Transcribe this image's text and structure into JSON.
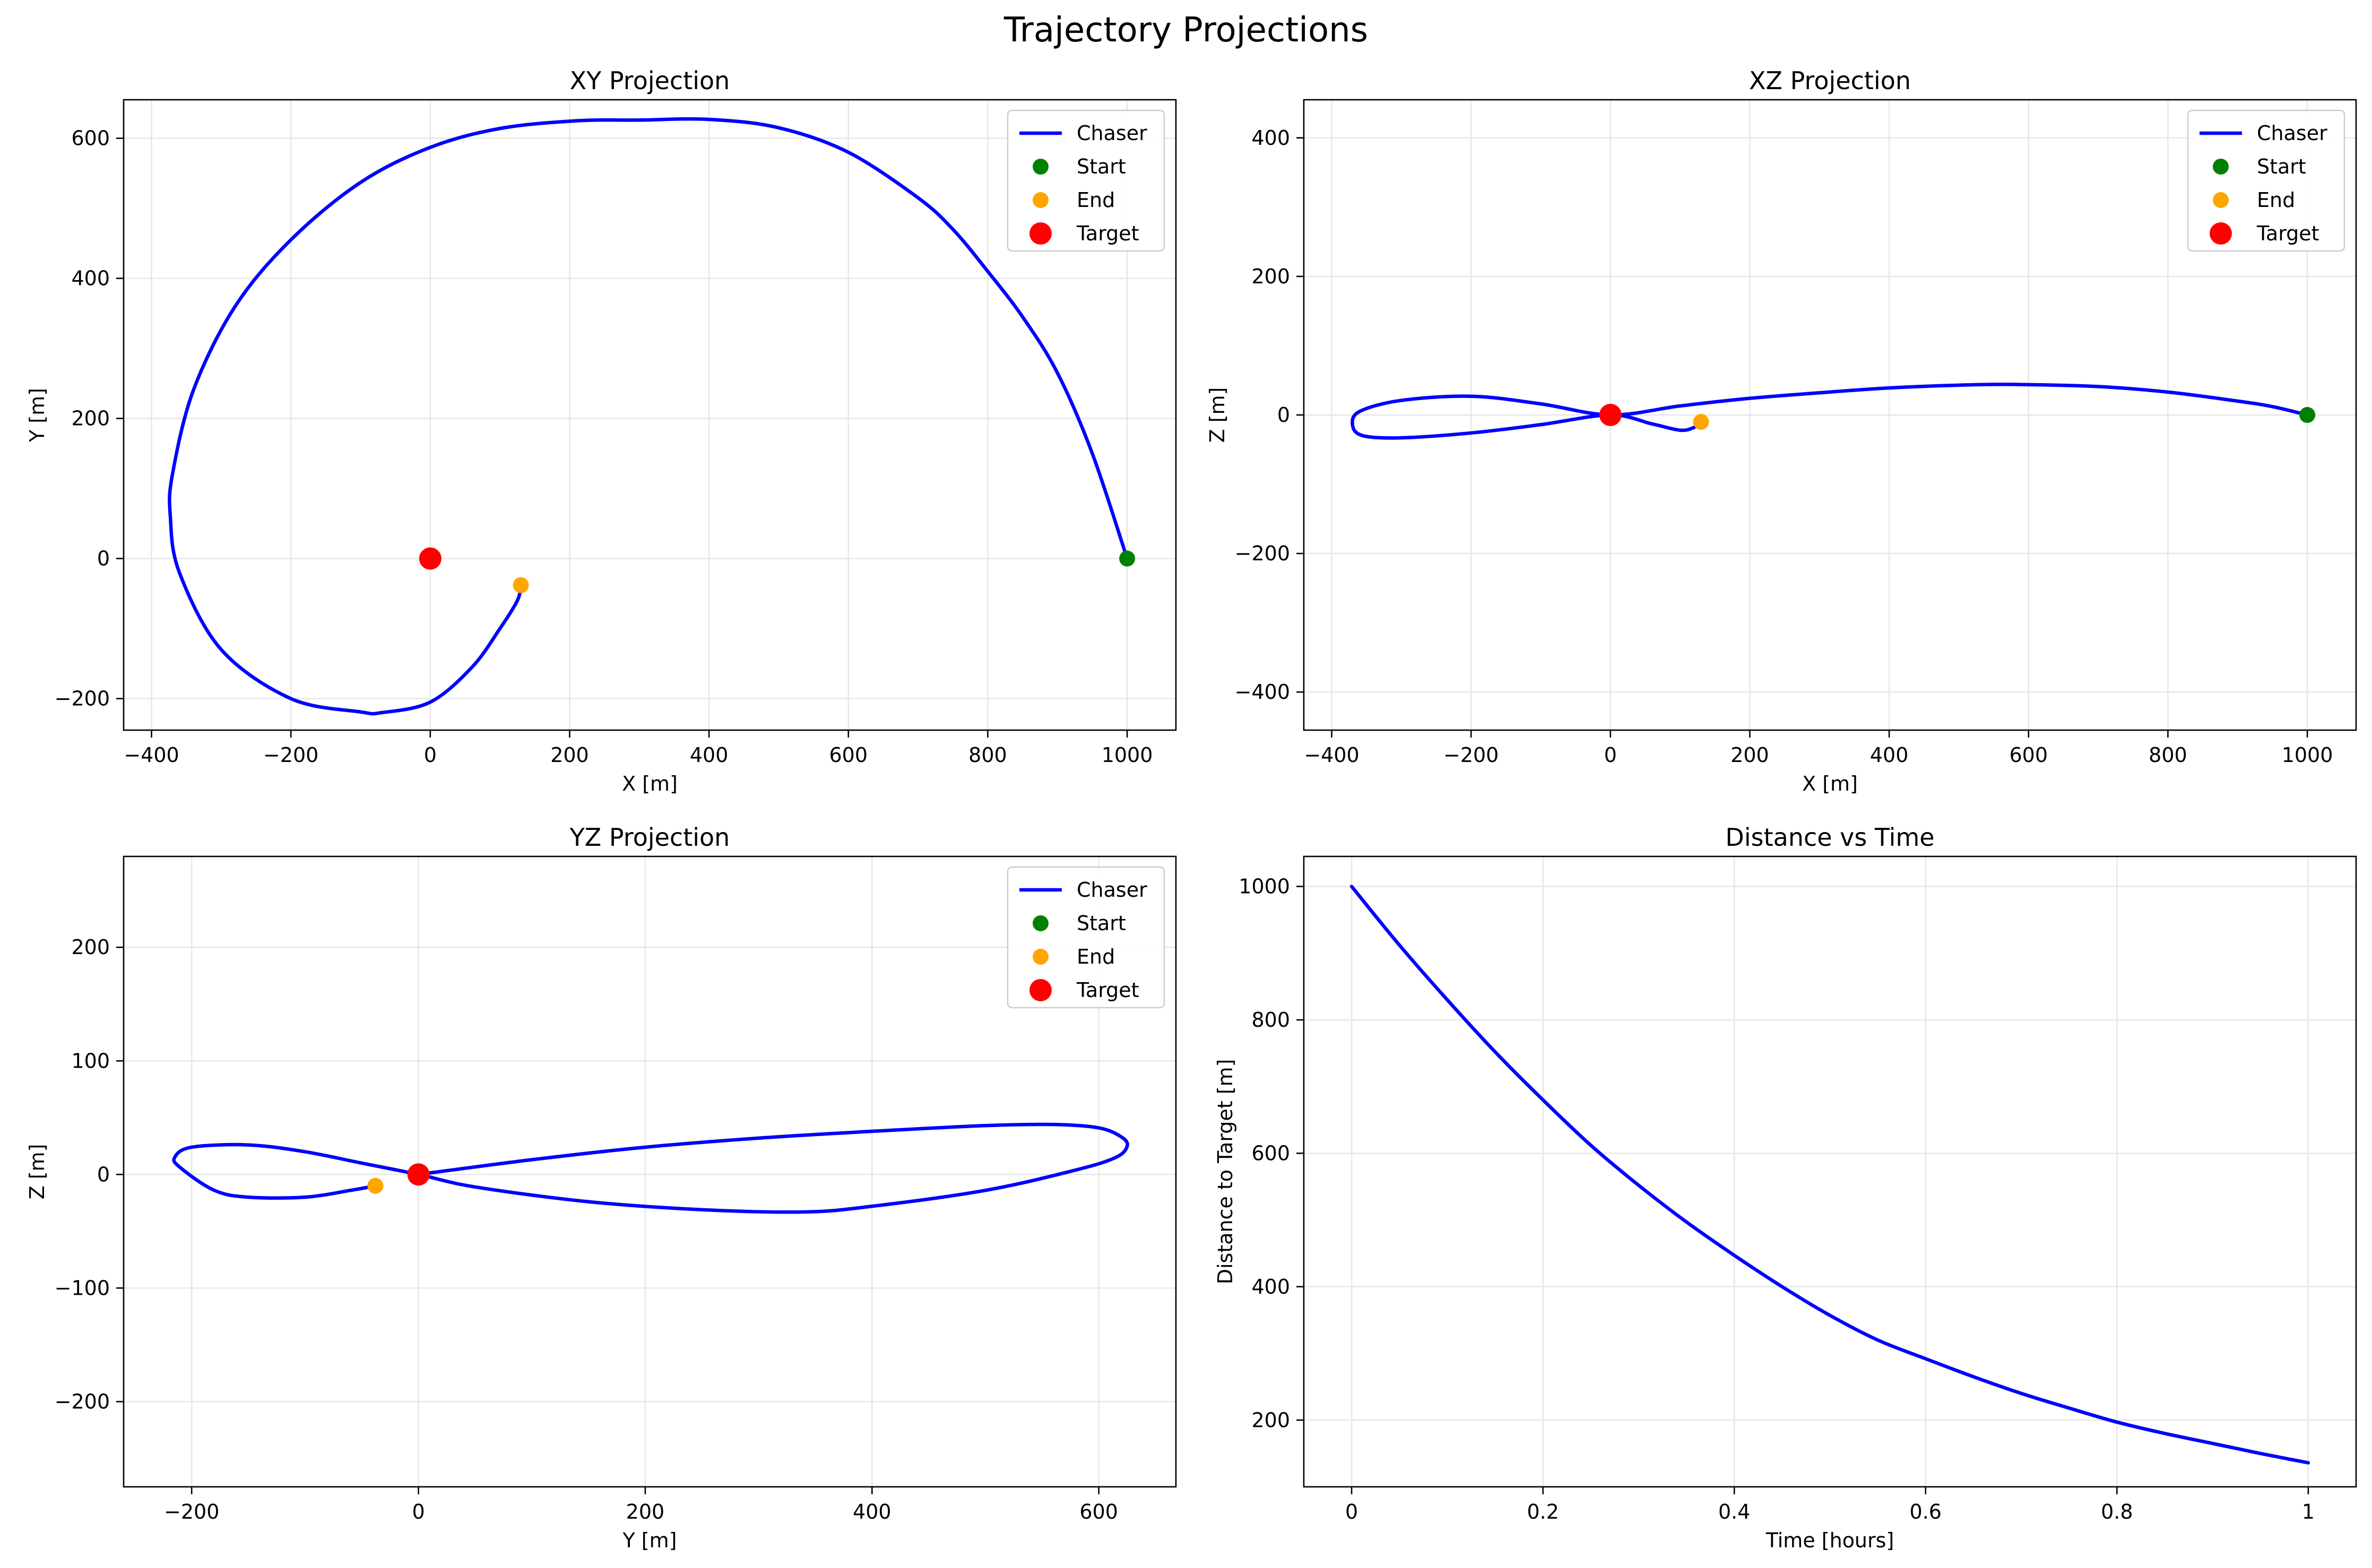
{
  "figure": {
    "title": "Trajectory Projections"
  },
  "colors": {
    "chaser": "#0000ff",
    "start": "#008000",
    "end": "#ffa500",
    "target": "#ff0000",
    "grid": "#e6e6e6",
    "frame": "#000000"
  },
  "chart_data": [
    {
      "id": "xy",
      "type": "line",
      "title": "XY Projection",
      "xlabel": "X [m]",
      "ylabel": "Y [m]",
      "xlim": [
        -440,
        1070
      ],
      "ylim": [
        -245,
        655
      ],
      "xticks": [
        -400,
        -200,
        0,
        200,
        400,
        600,
        800,
        1000
      ],
      "yticks": [
        -200,
        0,
        200,
        400,
        600
      ],
      "grid": true,
      "legend": "top-right",
      "series": [
        {
          "name": "Chaser",
          "kind": "line",
          "x": [
            1000,
            950,
            900,
            850,
            800,
            750,
            700,
            600,
            500,
            400,
            300,
            210,
            100,
            0,
            -100,
            -200,
            -280,
            -340,
            -370,
            -373,
            -360,
            -300,
            -200,
            -100,
            -70,
            0,
            60,
            100,
            125,
            130
          ],
          "y": [
            0,
            150,
            265,
            345,
            410,
            470,
            515,
            580,
            615,
            627,
            626,
            625,
            614,
            587,
            537,
            455,
            360,
            240,
            120,
            60,
            -20,
            -130,
            -200,
            -219,
            -220,
            -205,
            -155,
            -100,
            -60,
            -38
          ]
        },
        {
          "name": "Start",
          "kind": "point",
          "x": [
            1000
          ],
          "y": [
            0
          ]
        },
        {
          "name": "End",
          "kind": "point",
          "x": [
            130
          ],
          "y": [
            -38
          ]
        },
        {
          "name": "Target",
          "kind": "point",
          "x": [
            0
          ],
          "y": [
            0
          ]
        }
      ]
    },
    {
      "id": "xz",
      "type": "line",
      "title": "XZ Projection",
      "xlabel": "X [m]",
      "ylabel": "Z [m]",
      "xlim": [
        -440,
        1070
      ],
      "ylim": [
        -455,
        455
      ],
      "xticks": [
        -400,
        -200,
        0,
        200,
        400,
        600,
        800,
        1000
      ],
      "yticks": [
        -400,
        -200,
        0,
        200,
        400
      ],
      "grid": true,
      "legend": "top-right",
      "series": [
        {
          "name": "Chaser",
          "kind": "line",
          "x": [
            1000,
            950,
            900,
            800,
            700,
            580,
            500,
            400,
            300,
            200,
            100,
            0,
            -100,
            -200,
            -300,
            -360,
            -370,
            -355,
            -300,
            -200,
            -100,
            0,
            60,
            100,
            120,
            130
          ],
          "y": [
            0,
            12,
            20,
            33,
            41,
            44,
            43,
            39,
            32,
            24,
            13,
            0,
            16,
            27,
            21,
            5,
            -15,
            -30,
            -33,
            -26,
            -14,
            0,
            -13,
            -22,
            -18,
            -10
          ]
        },
        {
          "name": "Start",
          "kind": "point",
          "x": [
            1000
          ],
          "y": [
            0
          ]
        },
        {
          "name": "End",
          "kind": "point",
          "x": [
            130
          ],
          "y": [
            -10
          ]
        },
        {
          "name": "Target",
          "kind": "point",
          "x": [
            0
          ],
          "y": [
            0
          ]
        }
      ]
    },
    {
      "id": "yz",
      "type": "line",
      "title": "YZ Projection",
      "xlabel": "Y [m]",
      "ylabel": "Z [m]",
      "xlim": [
        -260,
        668
      ],
      "ylim": [
        -275,
        280
      ],
      "xticks": [
        -200,
        0,
        200,
        400,
        600
      ],
      "yticks": [
        -200,
        -100,
        0,
        100,
        200
      ],
      "grid": true,
      "legend": "top-right",
      "series": [
        {
          "name": "Chaser",
          "kind": "line",
          "x": [
            0,
            100,
            200,
            300,
            400,
            500,
            560,
            600,
            620,
            625,
            615,
            580,
            500,
            400,
            340,
            250,
            150,
            50,
            0,
            -50,
            -100,
            -150,
            -200,
            -215,
            -210,
            -180,
            -150,
            -100,
            -60,
            -38
          ],
          "y": [
            0,
            13,
            24,
            32,
            38,
            43,
            44,
            41,
            33,
            25,
            15,
            4,
            -14,
            -28,
            -33,
            -31,
            -24,
            -11,
            0,
            10,
            20,
            26,
            24,
            15,
            6,
            -14,
            -20,
            -20,
            -14,
            -10
          ]
        },
        {
          "name": "Start",
          "kind": "point",
          "x": [
            0
          ],
          "y": [
            0
          ]
        },
        {
          "name": "End",
          "kind": "point",
          "x": [
            -38
          ],
          "y": [
            -10
          ]
        },
        {
          "name": "Target",
          "kind": "point",
          "x": [
            0
          ],
          "y": [
            0
          ]
        }
      ]
    },
    {
      "id": "dist",
      "type": "line",
      "title": "Distance vs Time",
      "xlabel": "Time [hours]",
      "ylabel": "Distance to Target [m]",
      "xlim": [
        -0.05,
        1.05
      ],
      "ylim": [
        100,
        1045
      ],
      "xticks": [
        0.0,
        0.2,
        0.4,
        0.6,
        0.8,
        1.0
      ],
      "yticks": [
        200,
        400,
        600,
        800,
        1000
      ],
      "grid": true,
      "legend": "none",
      "series": [
        {
          "name": "",
          "kind": "line",
          "x": [
            0.0,
            0.05,
            0.1,
            0.15,
            0.2,
            0.25,
            0.3,
            0.35,
            0.4,
            0.45,
            0.5,
            0.55,
            0.6,
            0.65,
            0.7,
            0.75,
            0.8,
            0.85,
            0.9,
            0.95,
            1.0
          ],
          "y": [
            1000,
            912,
            830,
            752,
            680,
            612,
            552,
            497,
            447,
            400,
            357,
            320,
            292,
            265,
            240,
            218,
            197,
            180,
            165,
            150,
            136
          ]
        }
      ]
    }
  ]
}
